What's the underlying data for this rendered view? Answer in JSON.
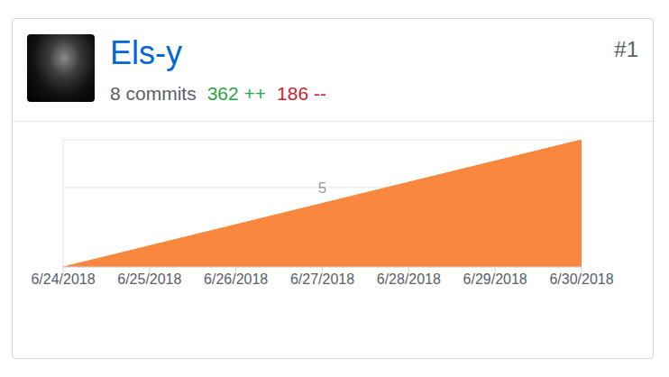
{
  "header": {
    "name": "Els-y",
    "rank": "#1",
    "commits": "8 commits",
    "additions": "362 ++",
    "deletions": "186 --"
  },
  "chart_data": {
    "type": "area",
    "x": [
      "6/24/2018",
      "6/30/2018"
    ],
    "values": [
      0,
      8
    ],
    "color": "#f9883e",
    "xlim": [
      "6/24/2018",
      "6/30/2018"
    ],
    "xticks": [
      "6/24/2018",
      "6/25/2018",
      "6/26/2018",
      "6/27/2018",
      "6/28/2018",
      "6/29/2018",
      "6/30/2018"
    ],
    "ylim": [
      0,
      8
    ],
    "yticks": [
      5
    ],
    "grid": true
  }
}
